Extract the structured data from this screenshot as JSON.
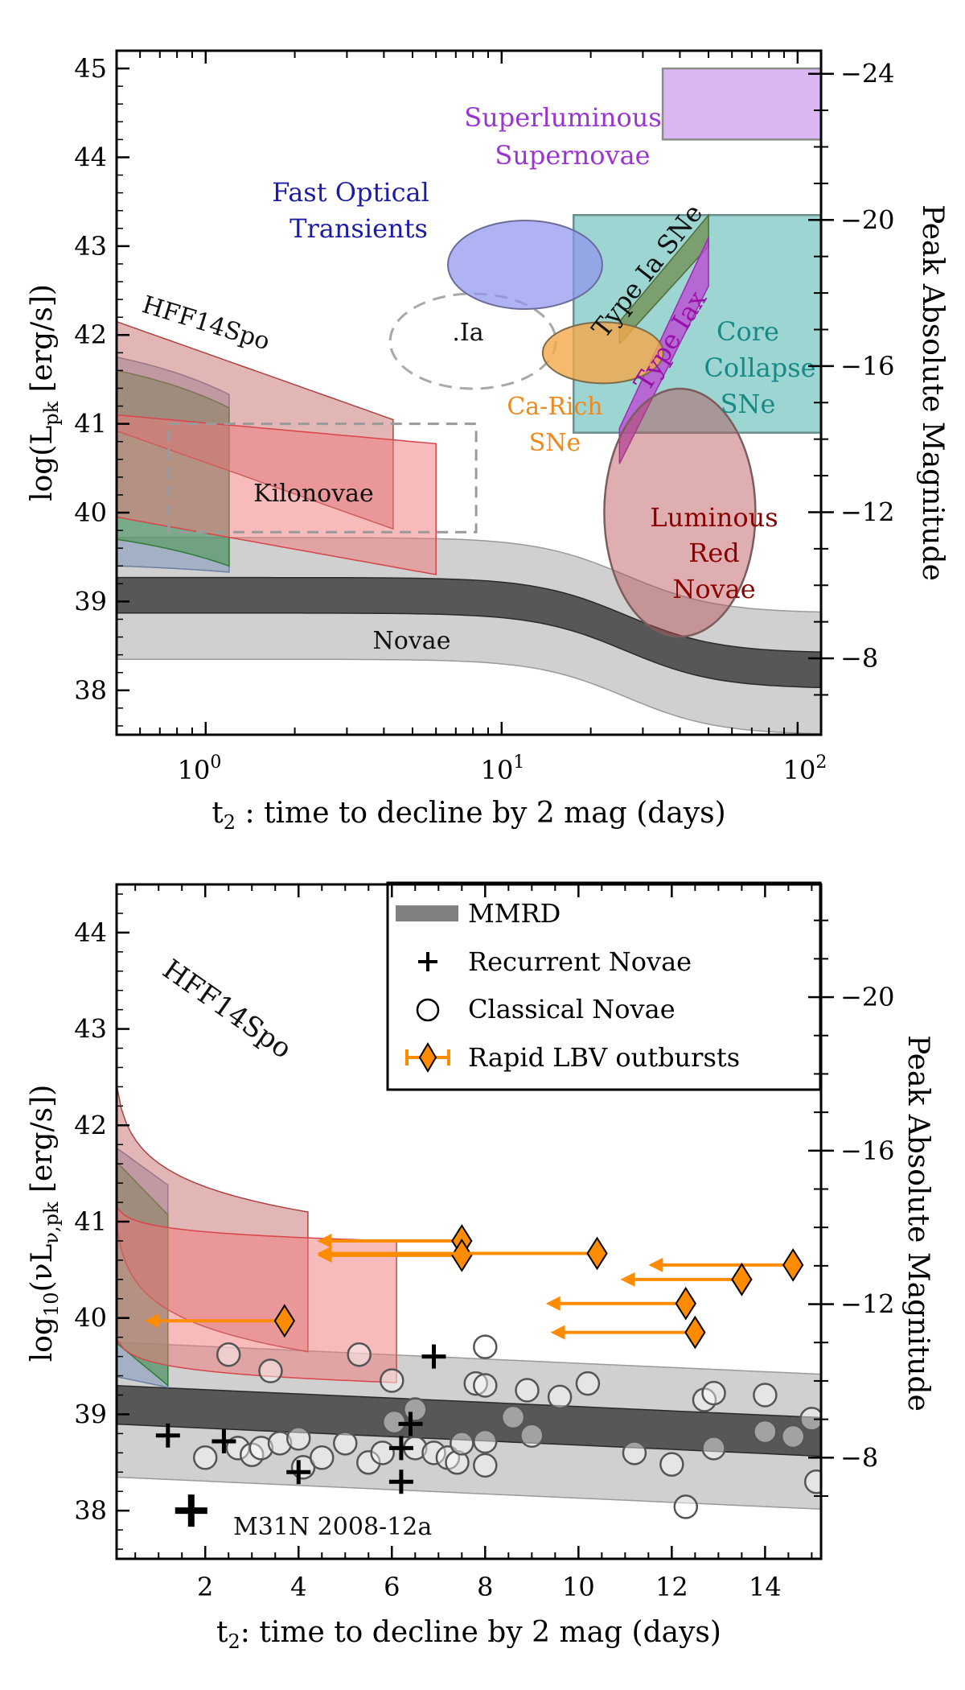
{
  "chart_data": [
    {
      "type": "area",
      "xscale": "log",
      "xlim": [
        0.5,
        120
      ],
      "ylim": [
        37.5,
        45.2
      ],
      "xlabel": "t2 : time to decline by 2 mag (days)",
      "ylabel": "log(Lpk [erg/s])",
      "ylabel_right": "Peak Absolute Magnitude",
      "xticks": [
        "10^0",
        "10^1",
        "10^2"
      ],
      "yticks": [
        38,
        39,
        40,
        41,
        42,
        43,
        44,
        45
      ],
      "right_ticks": [
        "−24",
        "−20",
        "−16",
        "−12",
        "−8"
      ],
      "labels": {
        "slsn": "Superluminous Supernovae",
        "fot": "Fast Optical Transients",
        "ia": "Type Ia SNe",
        "iax": "Type Iax",
        "cc": "Core Collapse SNe",
        "dot_ia": ".Ia",
        "carich": "Ca-Rich SNe",
        "lrn": "Luminous Red Novae",
        "kilonovae": "Kilonovae",
        "hff": "HFF14Spo",
        "novae": "Novae"
      },
      "regions": {
        "slsn": {
          "x": [
            35,
            120
          ],
          "y": [
            44.2,
            45.0
          ],
          "color": "#c79be8"
        },
        "fot": {
          "center": [
            12,
            42.8
          ],
          "color": "#8f93ee"
        },
        "cc": {
          "x": [
            17,
            120
          ],
          "y": [
            40.9,
            43.35
          ],
          "color": "#5bb9b5"
        },
        "ia": {
          "x": [
            25,
            50
          ],
          "y": [
            41.9,
            43.35
          ],
          "color": "#708c4d"
        },
        "iax": {
          "x": [
            25,
            50
          ],
          "y": [
            40.55,
            43.1
          ],
          "color": "#bc4bd3"
        },
        "carich": {
          "center": [
            22,
            41.8
          ],
          "color": "#f4a84a"
        },
        "dot_ia": {
          "center": [
            8,
            41.9
          ]
        },
        "lrn": {
          "center": [
            40,
            40.0
          ],
          "color": "#b54c52"
        },
        "kilonovae": {
          "x": [
            0.75,
            8
          ],
          "y": [
            39.8,
            41.0
          ]
        },
        "novae": {
          "mmrd_color": "#3d3d3d",
          "band_color": "#c8c8c8"
        }
      }
    },
    {
      "type": "scatter",
      "xlim": [
        0.1,
        15.2
      ],
      "ylim": [
        37.5,
        44.5
      ],
      "xlabel": "t2: time to decline by 2 mag (days)",
      "ylabel": "log10(νLν,pk [erg/s])",
      "ylabel_right": "Peak Absolute Magnitude",
      "xticks": [
        2,
        4,
        6,
        8,
        10,
        12,
        14
      ],
      "yticks": [
        38,
        39,
        40,
        41,
        42,
        43,
        44
      ],
      "right_ticks": [
        "−20",
        "−16",
        "−12",
        "−8"
      ],
      "hff_label": "HFF14Spo",
      "annotation": "M31N 2008-12a",
      "legend": {
        "position": "top-right",
        "items": [
          "MMRD",
          "Recurrent Novae",
          "Classical Novae",
          "Rapid LBV outbursts"
        ]
      },
      "series": [
        {
          "name": "Recurrent Novae",
          "marker": "plus",
          "points": [
            [
              1.2,
              38.78
            ],
            [
              2.4,
              38.72
            ],
            [
              4.0,
              38.4
            ],
            [
              6.2,
              38.65
            ],
            [
              6.2,
              38.3
            ],
            [
              6.4,
              38.9
            ],
            [
              6.9,
              39.6
            ],
            [
              1.7,
              38.0
            ]
          ]
        },
        {
          "name": "Classical Novae",
          "marker": "circle",
          "points": [
            [
              2.0,
              38.55
            ],
            [
              2.5,
              39.62
            ],
            [
              2.7,
              38.65
            ],
            [
              3.0,
              38.58
            ],
            [
              3.2,
              38.65
            ],
            [
              3.4,
              39.45
            ],
            [
              3.6,
              38.7
            ],
            [
              4.0,
              38.75
            ],
            [
              4.1,
              38.45
            ],
            [
              4.5,
              38.55
            ],
            [
              5.0,
              38.7
            ],
            [
              5.3,
              39.62
            ],
            [
              5.5,
              38.5
            ],
            [
              5.8,
              38.6
            ],
            [
              6.0,
              39.35
            ],
            [
              6.05,
              38.92
            ],
            [
              6.5,
              39.05
            ],
            [
              6.5,
              38.65
            ],
            [
              6.9,
              38.6
            ],
            [
              7.2,
              38.55
            ],
            [
              7.4,
              38.5
            ],
            [
              7.5,
              38.7
            ],
            [
              7.8,
              39.32
            ],
            [
              8.0,
              39.7
            ],
            [
              8.0,
              39.3
            ],
            [
              8.0,
              38.72
            ],
            [
              8.0,
              38.47
            ],
            [
              8.6,
              38.97
            ],
            [
              8.9,
              39.25
            ],
            [
              9.0,
              38.78
            ],
            [
              9.6,
              39.18
            ],
            [
              10.2,
              39.32
            ],
            [
              11.2,
              38.6
            ],
            [
              12.0,
              38.48
            ],
            [
              12.3,
              38.04
            ],
            [
              12.7,
              39.15
            ],
            [
              12.9,
              39.22
            ],
            [
              12.9,
              38.65
            ],
            [
              14.0,
              39.2
            ],
            [
              14.0,
              38.82
            ],
            [
              14.6,
              38.77
            ],
            [
              15.0,
              38.95
            ],
            [
              15.1,
              38.3
            ]
          ]
        },
        {
          "name": "Rapid LBV outbursts",
          "marker": "diamond",
          "color": "#ff8c00",
          "points": [
            {
              "x": 3.7,
              "y": 39.97,
              "xmin": 0.7
            },
            {
              "x": 7.5,
              "y": 40.8,
              "xmin": 4.4
            },
            {
              "x": 7.5,
              "y": 40.65,
              "xmin": 4.4
            },
            {
              "x": 10.4,
              "y": 40.67,
              "xmin": 4.4
            },
            {
              "x": 14.6,
              "y": 40.55,
              "xmin": 11.5
            },
            {
              "x": 13.5,
              "y": 40.4,
              "xmin": 10.9
            },
            {
              "x": 12.3,
              "y": 40.15,
              "xmin": 9.3
            },
            {
              "x": 12.5,
              "y": 39.85,
              "xmin": 9.4
            }
          ]
        }
      ]
    }
  ]
}
